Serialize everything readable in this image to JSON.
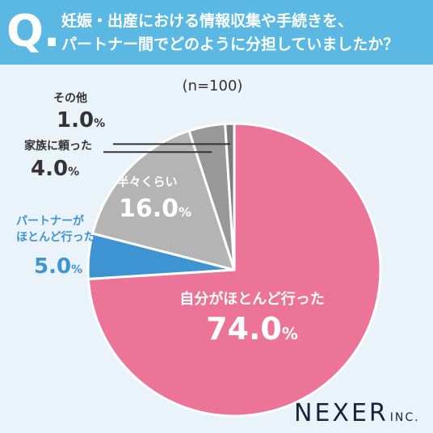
{
  "header": {
    "q_mark": "Q.",
    "question_line1": "妊娠・出産における情報収集や手続きを、",
    "question_line2": "パートナー間でどのように分担していましたか？"
  },
  "chart_data": {
    "type": "pie",
    "title": "妊娠・出産における情報収集や手続きを、パートナー間でどのように分担していましたか？",
    "sample_size": "(n=100)",
    "unit": "%",
    "slices": [
      {
        "label": "自分がほとんど行った",
        "value": 74.0,
        "value_text": "74.0",
        "color": "#ec7498"
      },
      {
        "label": "パートナーがほとんど行った",
        "value": 5.0,
        "value_text": "5.0",
        "color": "#3e94d2"
      },
      {
        "label": "半々くらい",
        "value": 16.0,
        "value_text": "16.0",
        "color": "#b4b4b4"
      },
      {
        "label": "家族に頼った",
        "value": 4.0,
        "value_text": "4.0",
        "color": "#989898"
      },
      {
        "label": "その他",
        "value": 1.0,
        "value_text": "1.0",
        "color": "#7c7c7c"
      }
    ]
  },
  "brand": {
    "name": "NEXER",
    "suffix": "INC."
  }
}
